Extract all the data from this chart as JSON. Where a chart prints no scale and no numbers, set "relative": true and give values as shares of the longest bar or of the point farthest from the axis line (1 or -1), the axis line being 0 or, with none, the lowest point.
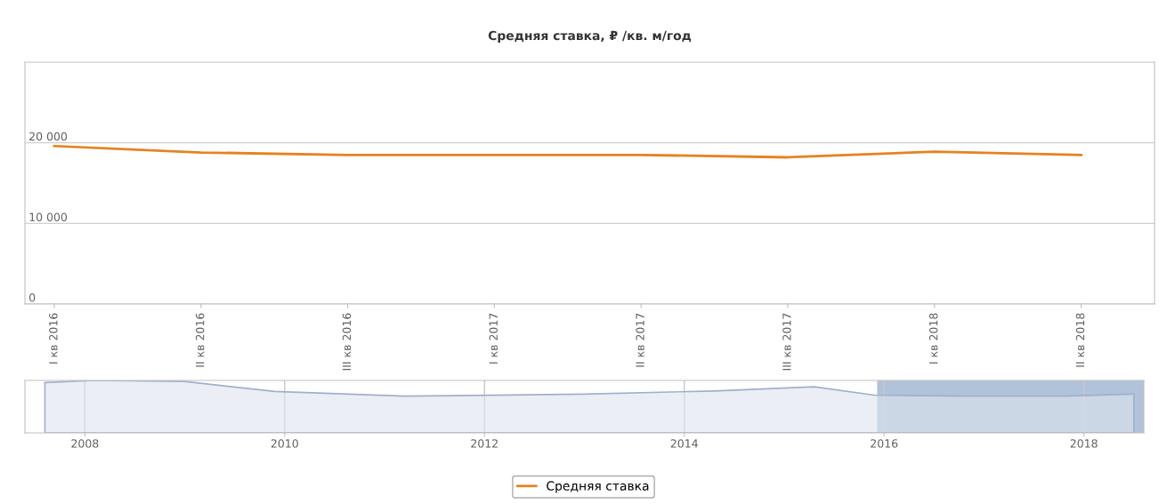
{
  "chart_data": [
    {
      "type": "line",
      "title": "Средняя ставка, ₽ /кв. м/год",
      "categories": [
        "I кв 2016",
        "II кв 2016",
        "III кв 2016",
        "I кв 2017",
        "II кв 2017",
        "III кв 2017",
        "I кв 2018",
        "II кв 2018"
      ],
      "series": [
        {
          "name": "Средняя ставка",
          "color": "#e8811f",
          "values": [
            19600,
            18800,
            18500,
            18500,
            18500,
            18200,
            18900,
            18500
          ]
        }
      ],
      "ylim": [
        0,
        30000
      ],
      "yticks": [
        {
          "value": 0,
          "label": "0"
        },
        {
          "value": 10000,
          "label": "10 000"
        },
        {
          "value": 20000,
          "label": "20 000"
        }
      ],
      "grid": "y",
      "legend": "bottom",
      "marker": "none",
      "line_style": "solid"
    },
    {
      "type": "area",
      "relative": true,
      "x": [
        2007.6,
        2008.1,
        2009.0,
        2009.9,
        2011.2,
        2013.0,
        2014.3,
        2015.3,
        2015.9,
        2016.8,
        2017.8,
        2018.5
      ],
      "series": [
        {
          "color": "#dde4ef",
          "values": [
            0.96,
            1.0,
            0.98,
            0.79,
            0.7,
            0.74,
            0.8,
            0.88,
            0.72,
            0.7,
            0.7,
            0.74
          ]
        }
      ],
      "xlim": [
        2007.4,
        2018.6
      ],
      "xticks": [
        2008,
        2010,
        2012,
        2014,
        2016,
        2018
      ],
      "bands": [
        {
          "axis": "x",
          "from": 2015.93,
          "to": 2018.6,
          "color": "#a9bcd6"
        }
      ],
      "grid": "x"
    }
  ]
}
